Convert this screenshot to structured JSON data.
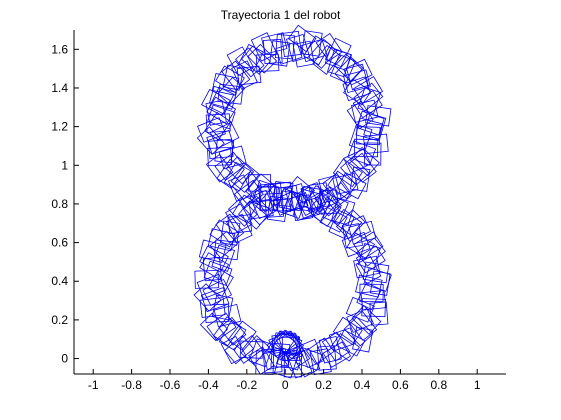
{
  "chart_data": {
    "type": "line",
    "title": "Trayectoria 1 del robot",
    "xlabel": "",
    "ylabel": "",
    "xlim": [
      -1.1,
      1.15
    ],
    "ylim": [
      -0.08,
      1.7
    ],
    "xticks": [
      -1,
      -0.8,
      -0.6,
      -0.4,
      -0.2,
      0,
      0.2,
      0.4,
      0.6,
      0.8,
      1
    ],
    "xtick_labels": [
      "-1",
      "-0.8",
      "-0.6",
      "-0.4",
      "-0.2",
      "0",
      "0.2",
      "0.4",
      "0.6",
      "0.8",
      "1"
    ],
    "yticks": [
      0,
      0.2,
      0.4,
      0.6,
      0.8,
      1,
      1.2,
      1.4,
      1.6
    ],
    "ytick_labels": [
      "0",
      "0.2",
      "0.4",
      "0.6",
      "0.8",
      "1",
      "1.2",
      "1.4",
      "1.6"
    ],
    "grid": false,
    "colors": {
      "trajectory": "#0000ff",
      "axes": "#000000"
    },
    "trajectory": {
      "description_none": "",
      "loops": [
        {
          "center": [
            0.04,
            0.4
          ],
          "radius": 0.42
        },
        {
          "center": [
            0.05,
            1.21
          ],
          "radius": 0.4
        }
      ],
      "start": [
        0.0,
        0.0
      ],
      "marker": "robot-rectangle",
      "marker_size": [
        0.09,
        0.12
      ],
      "marker_count": 150
    },
    "start_cluster": {
      "center": [
        0.0,
        0.0
      ],
      "marker_count": 10
    }
  }
}
